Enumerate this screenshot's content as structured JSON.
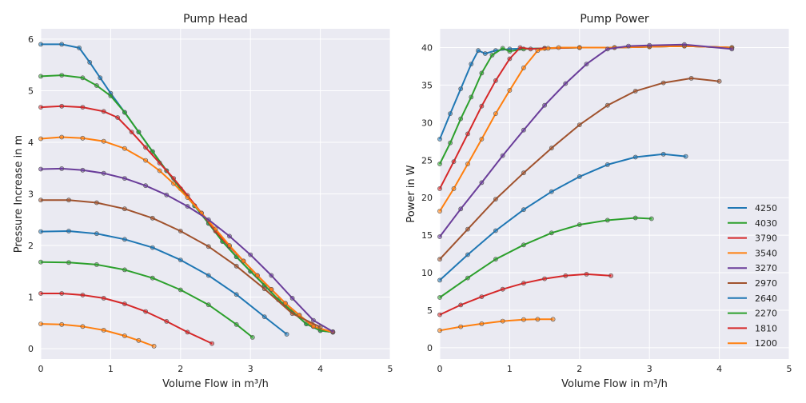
{
  "chart_data": [
    {
      "type": "line",
      "title": "Pump Head",
      "xlabel": "Volume Flow in m³/h",
      "ylabel": "Pressure Increase in m",
      "xlim": [
        0,
        5
      ],
      "ylim": [
        -0.2,
        6.2
      ],
      "xticks": [
        "0",
        "1",
        "2",
        "3",
        "4",
        "5"
      ],
      "yticks": [
        "0",
        "1",
        "2",
        "3",
        "4",
        "5",
        "6"
      ],
      "grid": true,
      "series": [
        {
          "name": "4250",
          "color": "#1f77b4",
          "x": [
            0,
            0.3,
            0.55,
            0.7,
            0.85,
            1.0,
            1.2,
            1.4,
            1.6,
            1.8,
            2.0,
            2.2,
            2.4,
            2.6,
            2.8,
            3.0,
            3.2,
            3.4,
            3.6,
            3.8,
            4.0,
            4.18
          ],
          "y": [
            5.9,
            5.9,
            5.83,
            5.55,
            5.25,
            4.95,
            4.58,
            4.2,
            3.82,
            3.45,
            3.1,
            2.77,
            2.43,
            2.08,
            1.78,
            1.5,
            1.23,
            0.95,
            0.72,
            0.48,
            0.35,
            0.32
          ]
        },
        {
          "name": "4030",
          "color": "#2ca02c",
          "x": [
            0,
            0.3,
            0.6,
            0.8,
            1.0,
            1.2,
            1.4,
            1.6,
            1.8,
            2.0,
            2.2,
            2.4,
            2.6,
            2.8,
            3.0,
            3.2,
            3.4,
            3.6,
            3.8,
            4.0,
            4.18
          ],
          "y": [
            5.28,
            5.3,
            5.25,
            5.1,
            4.9,
            4.58,
            4.2,
            3.82,
            3.45,
            3.1,
            2.77,
            2.43,
            2.08,
            1.78,
            1.5,
            1.23,
            0.95,
            0.72,
            0.48,
            0.35,
            0.32
          ]
        },
        {
          "name": "3790",
          "color": "#d62728",
          "x": [
            0,
            0.3,
            0.6,
            0.9,
            1.1,
            1.3,
            1.5,
            1.7,
            1.9,
            2.1,
            2.3,
            2.5,
            2.7,
            2.9,
            3.1,
            3.3,
            3.5,
            3.7,
            3.9,
            4.18
          ],
          "y": [
            4.68,
            4.7,
            4.68,
            4.6,
            4.48,
            4.2,
            3.9,
            3.6,
            3.3,
            2.97,
            2.63,
            2.28,
            1.98,
            1.7,
            1.42,
            1.15,
            0.88,
            0.65,
            0.43,
            0.32
          ]
        },
        {
          "name": "3540",
          "color": "#ff7f0e",
          "x": [
            0,
            0.3,
            0.6,
            0.9,
            1.2,
            1.5,
            1.7,
            1.9,
            2.1,
            2.3,
            2.5,
            2.7,
            2.9,
            3.1,
            3.3,
            3.5,
            3.7,
            3.9,
            4.18
          ],
          "y": [
            4.07,
            4.1,
            4.08,
            4.02,
            3.88,
            3.65,
            3.45,
            3.2,
            2.93,
            2.63,
            2.32,
            2.0,
            1.7,
            1.42,
            1.15,
            0.88,
            0.65,
            0.43,
            0.32
          ]
        },
        {
          "name": "3270",
          "color": "#6a3d9a",
          "x": [
            0,
            0.3,
            0.6,
            0.9,
            1.2,
            1.5,
            1.8,
            2.1,
            2.4,
            2.7,
            3.0,
            3.3,
            3.6,
            3.9,
            4.18
          ],
          "y": [
            3.48,
            3.49,
            3.46,
            3.4,
            3.3,
            3.16,
            2.98,
            2.76,
            2.5,
            2.18,
            1.82,
            1.42,
            0.98,
            0.55,
            0.33
          ]
        },
        {
          "name": "2970",
          "color": "#a0522d",
          "x": [
            0,
            0.4,
            0.8,
            1.2,
            1.6,
            2.0,
            2.4,
            2.8,
            3.2,
            3.6,
            4.0
          ],
          "y": [
            2.88,
            2.88,
            2.83,
            2.71,
            2.53,
            2.28,
            1.98,
            1.6,
            1.16,
            0.68,
            0.42
          ]
        },
        {
          "name": "2640",
          "color": "#1f77b4",
          "x": [
            0,
            0.4,
            0.8,
            1.2,
            1.6,
            2.0,
            2.4,
            2.8,
            3.2,
            3.52
          ],
          "y": [
            2.27,
            2.28,
            2.23,
            2.12,
            1.96,
            1.72,
            1.42,
            1.05,
            0.62,
            0.28
          ]
        },
        {
          "name": "2270",
          "color": "#2ca02c",
          "x": [
            0,
            0.4,
            0.8,
            1.2,
            1.6,
            2.0,
            2.4,
            2.8,
            3.03
          ],
          "y": [
            1.68,
            1.67,
            1.63,
            1.53,
            1.37,
            1.14,
            0.85,
            0.47,
            0.22
          ]
        },
        {
          "name": "1810",
          "color": "#d62728",
          "x": [
            0,
            0.3,
            0.6,
            0.9,
            1.2,
            1.5,
            1.8,
            2.1,
            2.45
          ],
          "y": [
            1.07,
            1.07,
            1.04,
            0.98,
            0.87,
            0.72,
            0.53,
            0.32,
            0.1
          ]
        },
        {
          "name": "1200",
          "color": "#ff7f0e",
          "x": [
            0,
            0.3,
            0.6,
            0.9,
            1.2,
            1.4,
            1.62
          ],
          "y": [
            0.48,
            0.47,
            0.43,
            0.36,
            0.25,
            0.16,
            0.05
          ]
        }
      ]
    },
    {
      "type": "line",
      "title": "Pump Power",
      "xlabel": "Volume Flow in m³/h",
      "ylabel": "Power in W",
      "xlim": [
        0,
        5
      ],
      "ylim": [
        -1.5,
        42.5
      ],
      "xticks": [
        "0",
        "1",
        "2",
        "3",
        "4",
        "5"
      ],
      "yticks": [
        "0",
        "5",
        "10",
        "15",
        "20",
        "25",
        "30",
        "35",
        "40"
      ],
      "grid": true,
      "legend": "bottom-right",
      "series": [
        {
          "name": "4250",
          "color": "#1f77b4",
          "x": [
            0,
            0.15,
            0.3,
            0.45,
            0.55,
            0.65,
            0.8,
            1.0,
            1.5,
            2.0,
            2.5,
            3.0,
            3.5,
            4.18
          ],
          "y": [
            27.8,
            31.2,
            34.5,
            37.8,
            39.6,
            39.2,
            39.6,
            39.8,
            39.9,
            40.0,
            40.0,
            40.1,
            40.2,
            40.0
          ]
        },
        {
          "name": "4030",
          "color": "#2ca02c",
          "x": [
            0,
            0.15,
            0.3,
            0.45,
            0.6,
            0.75,
            0.9,
            1.0,
            1.2,
            1.5,
            2.0,
            2.5,
            3.0,
            3.5,
            4.18
          ],
          "y": [
            24.5,
            27.3,
            30.5,
            33.4,
            36.6,
            39.0,
            39.9,
            39.5,
            39.8,
            39.9,
            40.0,
            40.0,
            40.1,
            40.2,
            40.0
          ]
        },
        {
          "name": "3790",
          "color": "#d62728",
          "x": [
            0,
            0.2,
            0.4,
            0.6,
            0.8,
            1.0,
            1.15,
            1.3,
            1.5,
            2.0,
            2.5,
            3.0,
            3.5,
            4.18
          ],
          "y": [
            21.2,
            24.8,
            28.5,
            32.2,
            35.6,
            38.5,
            40.0,
            39.8,
            39.9,
            40.0,
            40.0,
            40.1,
            40.2,
            40.0
          ]
        },
        {
          "name": "3540",
          "color": "#ff7f0e",
          "x": [
            0,
            0.2,
            0.4,
            0.6,
            0.8,
            1.0,
            1.2,
            1.4,
            1.55,
            1.7,
            2.0,
            2.5,
            3.0,
            3.5,
            4.18
          ],
          "y": [
            18.2,
            21.2,
            24.5,
            27.8,
            31.2,
            34.3,
            37.3,
            39.6,
            39.9,
            40.0,
            40.0,
            40.0,
            40.1,
            40.2,
            40.0
          ]
        },
        {
          "name": "3270",
          "color": "#6a3d9a",
          "x": [
            0,
            0.3,
            0.6,
            0.9,
            1.2,
            1.5,
            1.8,
            2.1,
            2.4,
            2.7,
            3.0,
            3.5,
            4.18
          ],
          "y": [
            14.8,
            18.5,
            22.0,
            25.6,
            29.0,
            32.3,
            35.2,
            37.8,
            39.8,
            40.2,
            40.3,
            40.4,
            39.8
          ]
        },
        {
          "name": "2970",
          "color": "#a0522d",
          "x": [
            0,
            0.4,
            0.8,
            1.2,
            1.6,
            2.0,
            2.4,
            2.8,
            3.2,
            3.6,
            4.0
          ],
          "y": [
            11.8,
            15.8,
            19.8,
            23.3,
            26.6,
            29.7,
            32.3,
            34.2,
            35.3,
            35.9,
            35.5
          ]
        },
        {
          "name": "2640",
          "color": "#1f77b4",
          "x": [
            0,
            0.4,
            0.8,
            1.2,
            1.6,
            2.0,
            2.4,
            2.8,
            3.2,
            3.52
          ],
          "y": [
            9.0,
            12.4,
            15.6,
            18.4,
            20.8,
            22.8,
            24.4,
            25.4,
            25.8,
            25.5
          ]
        },
        {
          "name": "2270",
          "color": "#2ca02c",
          "x": [
            0,
            0.4,
            0.8,
            1.2,
            1.6,
            2.0,
            2.4,
            2.8,
            3.03
          ],
          "y": [
            6.7,
            9.3,
            11.8,
            13.7,
            15.3,
            16.4,
            17.0,
            17.3,
            17.2
          ]
        },
        {
          "name": "1810",
          "color": "#d62728",
          "x": [
            0,
            0.3,
            0.6,
            0.9,
            1.2,
            1.5,
            1.8,
            2.1,
            2.45
          ],
          "y": [
            4.4,
            5.7,
            6.8,
            7.8,
            8.6,
            9.2,
            9.6,
            9.8,
            9.6
          ]
        },
        {
          "name": "1200",
          "color": "#ff7f0e",
          "x": [
            0,
            0.3,
            0.6,
            0.9,
            1.2,
            1.4,
            1.62
          ],
          "y": [
            2.3,
            2.8,
            3.2,
            3.55,
            3.75,
            3.8,
            3.8
          ]
        }
      ]
    }
  ]
}
